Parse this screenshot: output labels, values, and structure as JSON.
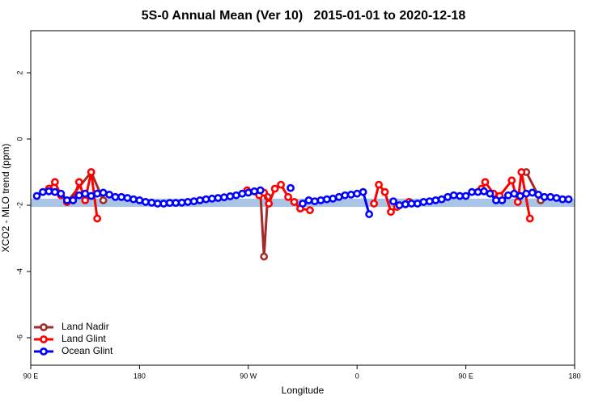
{
  "chart_data": {
    "type": "line",
    "title": "5S-0 Annual Mean (Ver 10)   2015-01-01 to 2020-12-18",
    "x_label": "Longitude",
    "y_label": "XCO2 - MLO trend (ppm)",
    "xlim": [
      90,
      540
    ],
    "xticks": [
      {
        "value": 90,
        "label": "90 E"
      },
      180,
      {
        "value": 270,
        "label": "90 W"
      },
      {
        "value": 360,
        "label": "0"
      },
      {
        "value": 450,
        "label": "90 E"
      },
      {
        "value": 540,
        "label": "180"
      }
    ],
    "ylim": [
      -6.83,
      3.27
    ],
    "yticks": [
      -6,
      -4,
      -2,
      0,
      2
    ],
    "band": {
      "ylim": [
        -2.05,
        -1.8
      ],
      "color": "#a9c4e4"
    },
    "legend": "bottom-left",
    "series": [
      {
        "name": "Land Nadir",
        "color": "#a52a2a",
        "x": [
          120,
          140,
          150,
          200,
          280,
          283,
          286,
          430,
          500,
          512
        ],
        "values": [
          -1.9,
          -1.0,
          -1.85,
          null,
          -1.6,
          -3.55,
          -1.75,
          null,
          -1.0,
          -1.85
        ]
      },
      {
        "name": "Land Glint",
        "color": "#ff0000",
        "x": [
          105,
          110,
          115,
          120,
          125,
          130,
          135,
          140,
          145,
          200,
          269,
          279,
          283,
          287,
          292,
          297,
          303,
          308,
          313,
          321,
          340,
          374,
          378,
          383,
          388,
          393,
          403,
          430,
          463,
          466,
          473,
          478,
          488,
          493,
          496,
          503
        ],
        "values": [
          -1.5,
          -1.3,
          -1.7,
          -1.9,
          -1.85,
          -1.3,
          -1.85,
          -1.0,
          -2.4,
          null,
          -1.55,
          -1.7,
          -1.62,
          -1.95,
          -1.5,
          -1.38,
          -1.75,
          -1.9,
          -2.1,
          -2.15,
          null,
          -1.95,
          -1.38,
          -1.6,
          -2.2,
          -2.05,
          -1.9,
          null,
          -1.5,
          -1.3,
          -1.65,
          -1.72,
          -1.25,
          -1.9,
          -1.0,
          -2.4
        ]
      },
      {
        "name": "Ocean Glint",
        "color": "#0000ff",
        "x": [
          95,
          100,
          105,
          110,
          115,
          120,
          125,
          130,
          135,
          140,
          145,
          150,
          155,
          160,
          165,
          170,
          175,
          180,
          185,
          190,
          195,
          200,
          205,
          210,
          215,
          220,
          225,
          230,
          235,
          240,
          245,
          250,
          255,
          260,
          265,
          270,
          275,
          280,
          285,
          290,
          295,
          300,
          305,
          310,
          315,
          320,
          325,
          330,
          335,
          340,
          345,
          350,
          355,
          360,
          365,
          370,
          375,
          380,
          385,
          390,
          395,
          400,
          405,
          410,
          415,
          420,
          425,
          430,
          435,
          440,
          445,
          450,
          455,
          460,
          465,
          470,
          475,
          480,
          485,
          490,
          495,
          500,
          505,
          510,
          515,
          520,
          525,
          530,
          535
        ],
        "values": [
          -1.72,
          -1.6,
          -1.58,
          -1.6,
          -1.65,
          -1.85,
          -1.85,
          -1.7,
          -1.65,
          -1.72,
          -1.65,
          -1.62,
          -1.68,
          -1.75,
          -1.75,
          -1.78,
          -1.82,
          -1.85,
          -1.9,
          -1.92,
          -1.95,
          -1.95,
          -1.93,
          -1.93,
          -1.92,
          -1.9,
          -1.88,
          -1.85,
          -1.82,
          -1.8,
          -1.78,
          -1.76,
          -1.73,
          -1.7,
          -1.65,
          -1.62,
          -1.58,
          -1.55,
          null,
          null,
          null,
          null,
          -1.48,
          null,
          -1.95,
          -1.85,
          -1.88,
          -1.85,
          -1.82,
          -1.8,
          -1.75,
          -1.7,
          -1.68,
          -1.65,
          -1.6,
          -2.27,
          null,
          null,
          null,
          -1.88,
          -2.0,
          -1.97,
          -1.95,
          -1.95,
          -1.9,
          -1.88,
          -1.85,
          -1.82,
          -1.75,
          -1.7,
          -1.72,
          -1.72,
          -1.6,
          -1.6,
          -1.58,
          -1.65,
          -1.85,
          -1.85,
          -1.7,
          -1.65,
          -1.72,
          -1.65,
          -1.62,
          -1.68,
          -1.75,
          -1.75,
          -1.78,
          -1.82,
          -1.82
        ]
      }
    ]
  }
}
